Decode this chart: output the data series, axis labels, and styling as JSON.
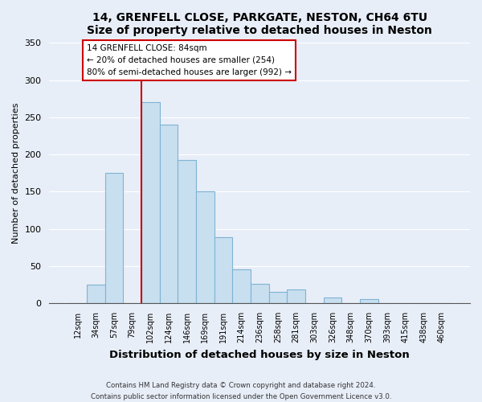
{
  "title": "14, GRENFELL CLOSE, PARKGATE, NESTON, CH64 6TU",
  "subtitle": "Size of property relative to detached houses in Neston",
  "xlabel": "Distribution of detached houses by size in Neston",
  "ylabel": "Number of detached properties",
  "bar_labels": [
    "12sqm",
    "34sqm",
    "57sqm",
    "79sqm",
    "102sqm",
    "124sqm",
    "146sqm",
    "169sqm",
    "191sqm",
    "214sqm",
    "236sqm",
    "258sqm",
    "281sqm",
    "303sqm",
    "326sqm",
    "348sqm",
    "370sqm",
    "393sqm",
    "415sqm",
    "438sqm",
    "460sqm"
  ],
  "bar_values": [
    0,
    25,
    175,
    0,
    270,
    240,
    193,
    150,
    89,
    46,
    26,
    15,
    18,
    0,
    8,
    0,
    5,
    0,
    0,
    0,
    0
  ],
  "bar_color": "#c8dff0",
  "bar_edge_color": "#7fb3d3",
  "vline_color": "#cc0000",
  "ylim": [
    0,
    350
  ],
  "yticks": [
    0,
    50,
    100,
    150,
    200,
    250,
    300,
    350
  ],
  "annotation_line1": "14 GRENFELL CLOSE: 84sqm",
  "annotation_line2": "← 20% of detached houses are smaller (254)",
  "annotation_line3": "80% of semi-detached houses are larger (992) →",
  "footer_line1": "Contains HM Land Registry data © Crown copyright and database right 2024.",
  "footer_line2": "Contains public sector information licensed under the Open Government Licence v3.0.",
  "background_color": "#e8eef8",
  "grid_color": "#ffffff",
  "vline_x_index": 4
}
